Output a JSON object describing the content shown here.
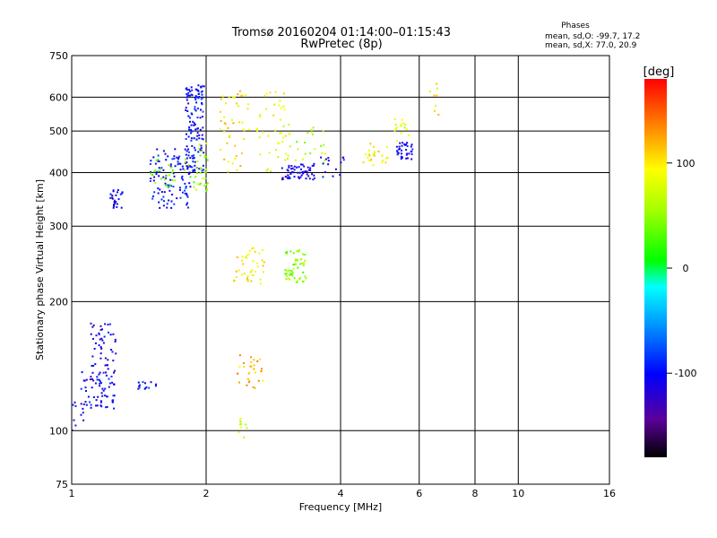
{
  "chart_data": {
    "type": "scatter",
    "title": "Tromsø 20160204 01:14:00–01:15:43",
    "subtitle": "RwPretec (8p)",
    "xlabel": "Frequency [MHz]",
    "ylabel": "Stationary phase Virtual Height [km]",
    "x_scale": "log",
    "y_scale": "log",
    "xlim": [
      1,
      16
    ],
    "ylim": [
      75,
      750
    ],
    "x_ticks": [
      "1",
      "2",
      "4",
      "6",
      "8",
      "10",
      "16"
    ],
    "y_ticks": [
      "75",
      "100",
      "200",
      "300",
      "400",
      "500",
      "600",
      "750"
    ],
    "grid": true,
    "stats": {
      "heading": "Phases",
      "line1": "mean, sd,O: -99.7, 17.2",
      "line2": "mean, sd,X:  77.0, 20.9"
    },
    "colorbar": {
      "label": "[deg]",
      "range": [
        -180,
        180
      ],
      "ticks": [
        "100",
        "0",
        "-100"
      ]
    },
    "clusters": [
      {
        "fmin": 1.0,
        "fmax": 1.08,
        "hmin": 100,
        "hmax": 118,
        "phase": -110,
        "n": 10
      },
      {
        "fmin": 1.05,
        "fmax": 1.26,
        "hmin": 112,
        "hmax": 140,
        "phase": -105,
        "n": 70
      },
      {
        "fmin": 1.1,
        "fmax": 1.26,
        "hmin": 140,
        "hmax": 180,
        "phase": -110,
        "n": 45
      },
      {
        "fmin": 1.22,
        "fmax": 1.3,
        "hmin": 330,
        "hmax": 365,
        "phase": -105,
        "n": 25
      },
      {
        "fmin": 1.4,
        "fmax": 1.55,
        "hmin": 125,
        "hmax": 130,
        "phase": -100,
        "n": 14
      },
      {
        "fmin": 1.5,
        "fmax": 1.85,
        "hmin": 330,
        "hmax": 460,
        "phase": -100,
        "n": 110
      },
      {
        "fmin": 1.5,
        "fmax": 1.9,
        "hmin": 370,
        "hmax": 430,
        "phase": 40,
        "n": 30
      },
      {
        "fmin": 1.8,
        "fmax": 1.98,
        "hmin": 400,
        "hmax": 640,
        "phase": -100,
        "n": 130
      },
      {
        "fmin": 1.9,
        "fmax": 2.02,
        "hmin": 360,
        "hmax": 480,
        "phase": 55,
        "n": 30
      },
      {
        "fmin": 2.15,
        "fmax": 2.5,
        "hmin": 400,
        "hmax": 620,
        "phase": 100,
        "n": 45
      },
      {
        "fmin": 2.3,
        "fmax": 2.7,
        "hmin": 220,
        "hmax": 270,
        "phase": 95,
        "n": 40
      },
      {
        "fmin": 2.35,
        "fmax": 2.75,
        "hmin": 125,
        "hmax": 150,
        "phase": 120,
        "n": 30
      },
      {
        "fmin": 2.35,
        "fmax": 2.5,
        "hmin": 96,
        "hmax": 107,
        "phase": 70,
        "n": 10
      },
      {
        "fmin": 2.6,
        "fmax": 3.1,
        "hmin": 400,
        "hmax": 620,
        "phase": 85,
        "n": 45
      },
      {
        "fmin": 2.95,
        "fmax": 3.5,
        "hmin": 385,
        "hmax": 420,
        "phase": -110,
        "n": 60
      },
      {
        "fmin": 3.0,
        "fmax": 3.35,
        "hmin": 220,
        "hmax": 265,
        "phase": 45,
        "n": 55
      },
      {
        "fmin": 3.15,
        "fmax": 3.7,
        "hmin": 420,
        "hmax": 510,
        "phase": 60,
        "n": 20
      },
      {
        "fmin": 3.6,
        "fmax": 4.1,
        "hmin": 390,
        "hmax": 440,
        "phase": -105,
        "n": 15
      },
      {
        "fmin": 4.5,
        "fmax": 5.1,
        "hmin": 410,
        "hmax": 470,
        "phase": 95,
        "n": 25
      },
      {
        "fmin": 5.3,
        "fmax": 5.8,
        "hmin": 430,
        "hmax": 470,
        "phase": -100,
        "n": 35
      },
      {
        "fmin": 5.2,
        "fmax": 5.7,
        "hmin": 470,
        "hmax": 560,
        "phase": 75,
        "n": 15
      },
      {
        "fmin": 6.3,
        "fmax": 6.7,
        "hmin": 530,
        "hmax": 670,
        "phase": 95,
        "n": 8
      }
    ]
  }
}
